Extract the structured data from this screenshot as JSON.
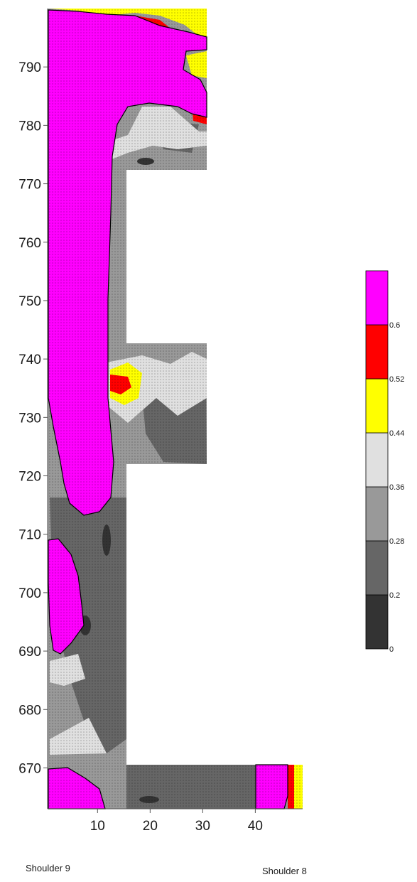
{
  "chart_data": {
    "type": "heatmap",
    "title": "",
    "xlabel": "",
    "ylabel": "",
    "xlim": [
      0.5,
      49
    ],
    "ylim": [
      663,
      800
    ],
    "x_ticks": [
      10,
      20,
      30,
      40
    ],
    "y_ticks": [
      670,
      680,
      690,
      700,
      710,
      720,
      730,
      740,
      750,
      760,
      770,
      780,
      790
    ],
    "grid": false,
    "legend": "right",
    "colorbar": {
      "ticks": [
        "0",
        "0.2",
        "0.28",
        "0.36",
        "0.44",
        "0.52",
        "0.6"
      ],
      "bins": [
        {
          "from": 0,
          "to": 0.2,
          "color": "#333333"
        },
        {
          "from": 0.2,
          "to": 0.28,
          "color": "#666666"
        },
        {
          "from": 0.28,
          "to": 0.36,
          "color": "#999999"
        },
        {
          "from": 0.36,
          "to": 0.44,
          "color": "#e0e0e0"
        },
        {
          "from": 0.44,
          "to": 0.52,
          "color": "#ffff00"
        },
        {
          "from": 0.52,
          "to": 0.6,
          "color": "#ff0000"
        },
        {
          "from": 0.6,
          "to": null,
          "color": "#ff00ff"
        }
      ]
    },
    "annotations": [
      "Shoulder 9",
      "Shoulder 8"
    ]
  }
}
